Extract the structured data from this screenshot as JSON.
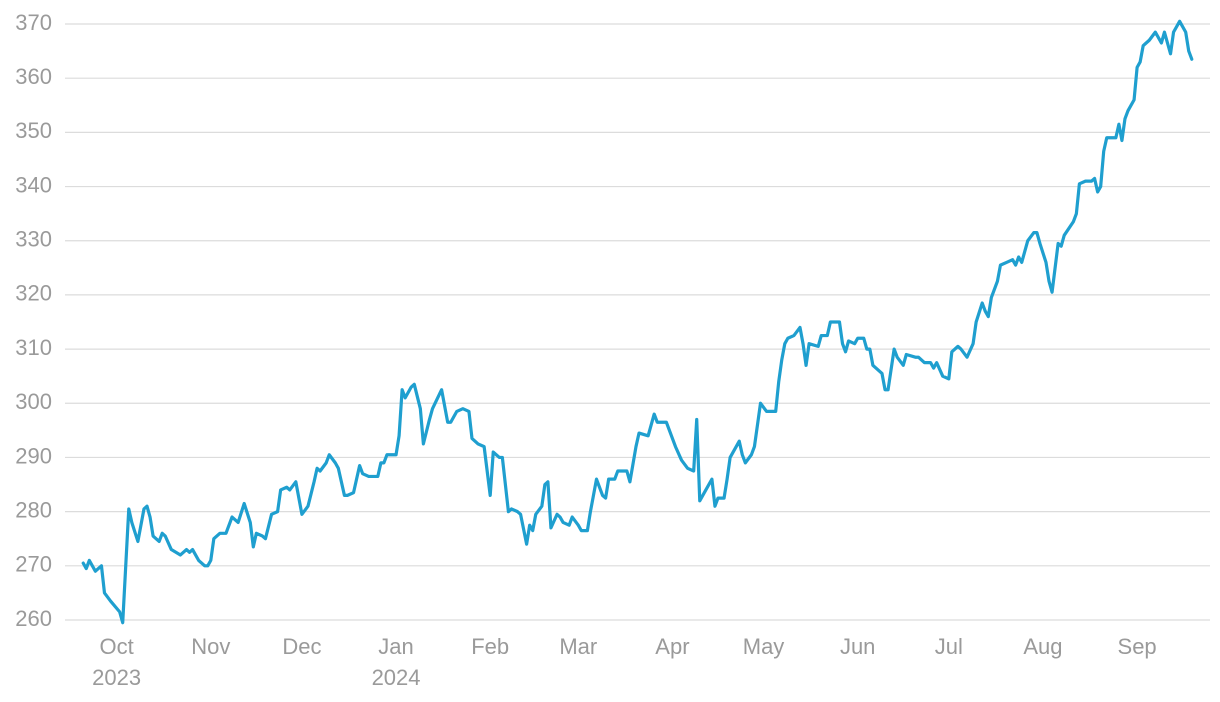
{
  "chart_data": {
    "type": "line",
    "x": [
      -11,
      -10,
      -9,
      -7,
      -5,
      -4,
      -2,
      1,
      2,
      3,
      4,
      5,
      7,
      9,
      10,
      11,
      12,
      14,
      15,
      16,
      18,
      21,
      23,
      24,
      25,
      27,
      29,
      30,
      31,
      32,
      34,
      36,
      37,
      38,
      40,
      42,
      44,
      45,
      46,
      48,
      49,
      51,
      53,
      54,
      56,
      57,
      59,
      60,
      61,
      63,
      65,
      66,
      67,
      69,
      70,
      72,
      73,
      75,
      76,
      78,
      80,
      81,
      83,
      86,
      87,
      88,
      89,
      92,
      93,
      94,
      95,
      97,
      98,
      100,
      101,
      103,
      104,
      107,
      109,
      110,
      112,
      114,
      116,
      117,
      119,
      121,
      123,
      124,
      126,
      127,
      129,
      130,
      132,
      133,
      135,
      136,
      137,
      138,
      140,
      141,
      142,
      143,
      145,
      146,
      147,
      149,
      150,
      152,
      153,
      155,
      156,
      158,
      160,
      161,
      162,
      164,
      165,
      168,
      169,
      171,
      172,
      175,
      177,
      178,
      181,
      184,
      186,
      188,
      190,
      191,
      192,
      194,
      196,
      197,
      198,
      200,
      201,
      202,
      205,
      206,
      207,
      209,
      210,
      211,
      212,
      214,
      217,
      218,
      219,
      220,
      221,
      223,
      225,
      226,
      227,
      228,
      231,
      232,
      234,
      235,
      238,
      239,
      240,
      241,
      243,
      244,
      246,
      247,
      248,
      249,
      252,
      253,
      254,
      256,
      257,
      259,
      260,
      263,
      264,
      266,
      268,
      269,
      270,
      272,
      274,
      275,
      277,
      278,
      280,
      282,
      283,
      285,
      286,
      287,
      288,
      290,
      291,
      293,
      295,
      296,
      297,
      298,
      299,
      300,
      302,
      303,
      304,
      306,
      307,
      308,
      310,
      311,
      312,
      315,
      316,
      317,
      319,
      321,
      322,
      323,
      324,
      325,
      326,
      328,
      329,
      330,
      331,
      332,
      333,
      335,
      336,
      337,
      338,
      340,
      342,
      344,
      345,
      347,
      348,
      350,
      352,
      353,
      354
    ],
    "series": [
      {
        "color": "#1f9fcf",
        "values": [
          270.5,
          269.5,
          271,
          269,
          270,
          265,
          263.5,
          261.5,
          259.5,
          270,
          280.5,
          278,
          274.5,
          280.5,
          281,
          279,
          275.5,
          274.5,
          276,
          275.5,
          273,
          272,
          273,
          272.5,
          273,
          271,
          270,
          270,
          271,
          275,
          276,
          276,
          277.5,
          279,
          278,
          281.5,
          278,
          273.5,
          276,
          275.5,
          275,
          279.5,
          280,
          284,
          284.5,
          284,
          285.5,
          282.5,
          279.5,
          281,
          285.5,
          288,
          287.5,
          289,
          290.5,
          289,
          288,
          283,
          283,
          283.5,
          288.5,
          287,
          286.5,
          286.5,
          289,
          289,
          290.5,
          290.5,
          294,
          302.5,
          301,
          303,
          303.5,
          299,
          292.5,
          297,
          299,
          302.5,
          296.5,
          296.5,
          298.5,
          299,
          298.5,
          293.5,
          292.5,
          292,
          283,
          291,
          290,
          290,
          280,
          280.5,
          280,
          279.5,
          274,
          277.5,
          276.5,
          279.5,
          281,
          285,
          285.5,
          277,
          279.5,
          279,
          278,
          277.5,
          279,
          277.5,
          276.5,
          276.5,
          280,
          286,
          283,
          282.5,
          286,
          286,
          287.5,
          287.5,
          285.5,
          292,
          294.5,
          294,
          298,
          296.5,
          296.5,
          292,
          289.5,
          288,
          287.5,
          297,
          282,
          284,
          286,
          281,
          282.5,
          282.5,
          286,
          290,
          293,
          290.5,
          289,
          290.5,
          292,
          296,
          300,
          298.5,
          298.5,
          304,
          308,
          311,
          312,
          312.5,
          314,
          311,
          307,
          311,
          310.5,
          312.5,
          312.5,
          315,
          315,
          311,
          309.5,
          311.5,
          311,
          312,
          312,
          310,
          310,
          307,
          305.5,
          302.5,
          302.5,
          310,
          308.5,
          307,
          309,
          308.5,
          308.5,
          307.5,
          307.5,
          306.5,
          307.5,
          305,
          304.5,
          309.5,
          310.5,
          310,
          308.5,
          311,
          315,
          318.5,
          317,
          316,
          319.5,
          322.5,
          325.5,
          326,
          326.5,
          325.5,
          327,
          326,
          328,
          330,
          331.5,
          331.5,
          329.5,
          326,
          322.5,
          320.5,
          329.5,
          329,
          331,
          333.5,
          335,
          340.5,
          341,
          341,
          341.5,
          339,
          340,
          346.5,
          349,
          349,
          349,
          351.5,
          348.5,
          352.5,
          354,
          356,
          362,
          363,
          366,
          367,
          368.5,
          366.5,
          368.5,
          364.5,
          368.5,
          370.5,
          368.5,
          365,
          363.5
        ]
      }
    ],
    "xlim": [
      -17,
      360
    ],
    "xticks": [
      {
        "value": 0,
        "label": "Oct"
      },
      {
        "value": 31,
        "label": "Nov"
      },
      {
        "value": 61,
        "label": "Dec"
      },
      {
        "value": 92,
        "label": "Jan"
      },
      {
        "value": 123,
        "label": "Feb"
      },
      {
        "value": 152,
        "label": "Mar"
      },
      {
        "value": 183,
        "label": "Apr"
      },
      {
        "value": 213,
        "label": "May"
      },
      {
        "value": 244,
        "label": "Jun"
      },
      {
        "value": 274,
        "label": "Jul"
      },
      {
        "value": 305,
        "label": "Aug"
      },
      {
        "value": 336,
        "label": "Sep"
      }
    ],
    "year_labels": [
      {
        "value": 0,
        "label": "2023"
      },
      {
        "value": 92,
        "label": "2024"
      }
    ],
    "ylim": [
      260,
      370
    ],
    "yticks": [
      260,
      270,
      280,
      290,
      300,
      310,
      320,
      330,
      340,
      350,
      360,
      370
    ],
    "grid": true
  }
}
